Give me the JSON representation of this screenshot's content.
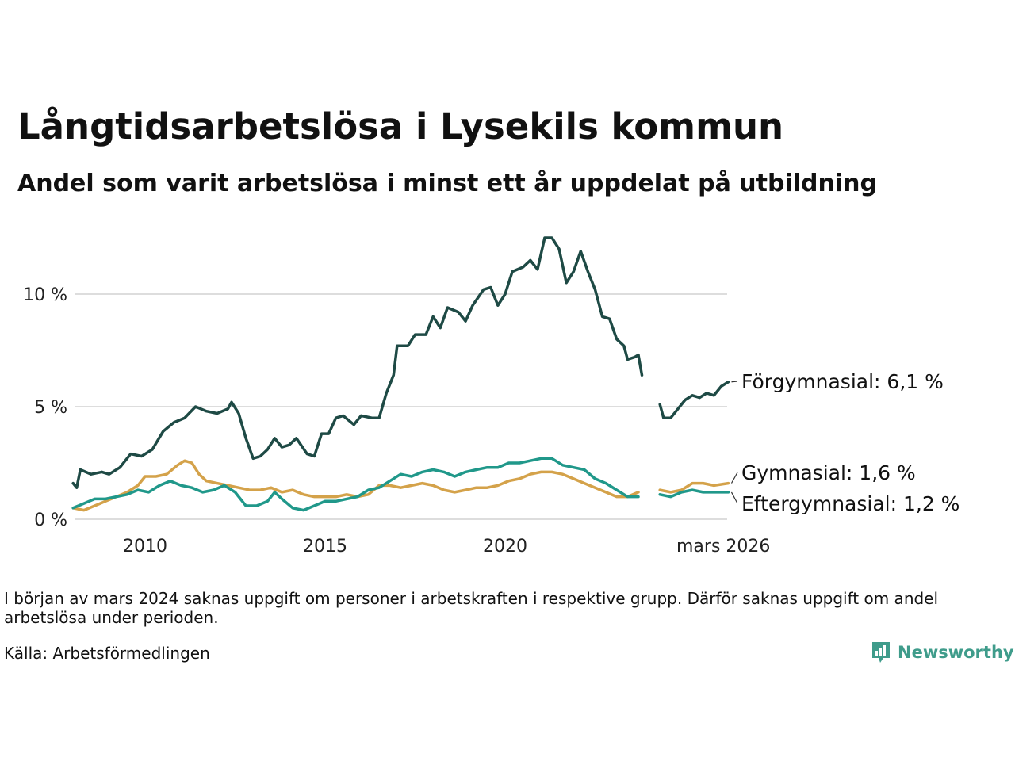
{
  "header": {
    "title": "Långtidsarbetslösa i Lysekils kommun",
    "subtitle": "Andel som varit arbetslösa i minst ett år uppdelat på utbildning"
  },
  "footer": {
    "note": "I början av mars 2024 saknas uppgift om personer i arbetskraften i respektive grupp. Därför saknas uppgift om andel arbetslösa under perioden.",
    "source": "Källa: Arbetsförmedlingen",
    "brand": "Newsworthy"
  },
  "chart_data": {
    "type": "line",
    "x_unit": "decimal year",
    "xlim": [
      2008.0,
      2026.2
    ],
    "ylim": [
      0,
      13
    ],
    "y_ticks": [
      0,
      5,
      10
    ],
    "y_tick_labels": [
      "0 %",
      "5 %",
      "10 %"
    ],
    "x_ticks": [
      2010,
      2015,
      2020,
      2026.2
    ],
    "x_tick_labels": [
      "2010",
      "2015",
      "2020",
      "mars 2026"
    ],
    "grid": "horizontal",
    "gap": [
      2024.0,
      2024.3
    ],
    "series": [
      {
        "name": "Förgymnasial",
        "end_label": "Förgymnasial: 6,1 %",
        "color": "#1e4a45",
        "points": [
          [
            2008.0,
            1.6
          ],
          [
            2008.1,
            1.4
          ],
          [
            2008.2,
            2.2
          ],
          [
            2008.5,
            2.0
          ],
          [
            2008.8,
            2.1
          ],
          [
            2009.0,
            2.0
          ],
          [
            2009.3,
            2.3
          ],
          [
            2009.6,
            2.9
          ],
          [
            2009.9,
            2.8
          ],
          [
            2010.2,
            3.1
          ],
          [
            2010.5,
            3.9
          ],
          [
            2010.8,
            4.3
          ],
          [
            2011.1,
            4.5
          ],
          [
            2011.4,
            5.0
          ],
          [
            2011.7,
            4.8
          ],
          [
            2012.0,
            4.7
          ],
          [
            2012.3,
            4.9
          ],
          [
            2012.4,
            5.2
          ],
          [
            2012.6,
            4.7
          ],
          [
            2012.8,
            3.6
          ],
          [
            2013.0,
            2.7
          ],
          [
            2013.2,
            2.8
          ],
          [
            2013.4,
            3.1
          ],
          [
            2013.6,
            3.6
          ],
          [
            2013.8,
            3.2
          ],
          [
            2014.0,
            3.3
          ],
          [
            2014.2,
            3.6
          ],
          [
            2014.5,
            2.9
          ],
          [
            2014.7,
            2.8
          ],
          [
            2014.9,
            3.8
          ],
          [
            2015.1,
            3.8
          ],
          [
            2015.3,
            4.5
          ],
          [
            2015.5,
            4.6
          ],
          [
            2015.8,
            4.2
          ],
          [
            2016.0,
            4.6
          ],
          [
            2016.3,
            4.5
          ],
          [
            2016.5,
            4.5
          ],
          [
            2016.7,
            5.6
          ],
          [
            2016.9,
            6.4
          ],
          [
            2017.0,
            7.7
          ],
          [
            2017.3,
            7.7
          ],
          [
            2017.5,
            8.2
          ],
          [
            2017.8,
            8.2
          ],
          [
            2018.0,
            9.0
          ],
          [
            2018.2,
            8.5
          ],
          [
            2018.4,
            9.4
          ],
          [
            2018.7,
            9.2
          ],
          [
            2018.9,
            8.8
          ],
          [
            2019.1,
            9.5
          ],
          [
            2019.4,
            10.2
          ],
          [
            2019.6,
            10.3
          ],
          [
            2019.8,
            9.5
          ],
          [
            2020.0,
            10.0
          ],
          [
            2020.2,
            11.0
          ],
          [
            2020.5,
            11.2
          ],
          [
            2020.7,
            11.5
          ],
          [
            2020.9,
            11.1
          ],
          [
            2021.1,
            12.5
          ],
          [
            2021.3,
            12.5
          ],
          [
            2021.5,
            12.0
          ],
          [
            2021.7,
            10.5
          ],
          [
            2021.9,
            11.0
          ],
          [
            2022.1,
            11.9
          ],
          [
            2022.3,
            11.0
          ],
          [
            2022.5,
            10.2
          ],
          [
            2022.7,
            9.0
          ],
          [
            2022.9,
            8.9
          ],
          [
            2023.1,
            8.0
          ],
          [
            2023.3,
            7.7
          ],
          [
            2023.4,
            7.1
          ],
          [
            2023.6,
            7.2
          ],
          [
            2023.7,
            7.3
          ],
          [
            2023.8,
            6.4
          ],
          [
            2024.3,
            5.1
          ],
          [
            2024.4,
            4.5
          ],
          [
            2024.6,
            4.5
          ],
          [
            2024.8,
            4.9
          ],
          [
            2025.0,
            5.3
          ],
          [
            2025.2,
            5.5
          ],
          [
            2025.4,
            5.4
          ],
          [
            2025.6,
            5.6
          ],
          [
            2025.8,
            5.5
          ],
          [
            2025.9,
            5.7
          ],
          [
            2026.0,
            5.9
          ],
          [
            2026.2,
            6.1
          ]
        ]
      },
      {
        "name": "Gymnasial",
        "end_label": "Gymnasial: 1,6 %",
        "color": "#d4a24a",
        "points": [
          [
            2008.0,
            0.5
          ],
          [
            2008.3,
            0.4
          ],
          [
            2008.6,
            0.6
          ],
          [
            2008.9,
            0.8
          ],
          [
            2009.2,
            1.0
          ],
          [
            2009.5,
            1.2
          ],
          [
            2009.8,
            1.5
          ],
          [
            2010.0,
            1.9
          ],
          [
            2010.3,
            1.9
          ],
          [
            2010.6,
            2.0
          ],
          [
            2010.9,
            2.4
          ],
          [
            2011.1,
            2.6
          ],
          [
            2011.3,
            2.5
          ],
          [
            2011.5,
            2.0
          ],
          [
            2011.7,
            1.7
          ],
          [
            2012.0,
            1.6
          ],
          [
            2012.3,
            1.5
          ],
          [
            2012.6,
            1.4
          ],
          [
            2012.9,
            1.3
          ],
          [
            2013.2,
            1.3
          ],
          [
            2013.5,
            1.4
          ],
          [
            2013.8,
            1.2
          ],
          [
            2014.1,
            1.3
          ],
          [
            2014.4,
            1.1
          ],
          [
            2014.7,
            1.0
          ],
          [
            2015.0,
            1.0
          ],
          [
            2015.3,
            1.0
          ],
          [
            2015.6,
            1.1
          ],
          [
            2015.9,
            1.0
          ],
          [
            2016.2,
            1.1
          ],
          [
            2016.5,
            1.5
          ],
          [
            2016.8,
            1.5
          ],
          [
            2017.1,
            1.4
          ],
          [
            2017.4,
            1.5
          ],
          [
            2017.7,
            1.6
          ],
          [
            2018.0,
            1.5
          ],
          [
            2018.3,
            1.3
          ],
          [
            2018.6,
            1.2
          ],
          [
            2018.9,
            1.3
          ],
          [
            2019.2,
            1.4
          ],
          [
            2019.5,
            1.4
          ],
          [
            2019.8,
            1.5
          ],
          [
            2020.1,
            1.7
          ],
          [
            2020.4,
            1.8
          ],
          [
            2020.7,
            2.0
          ],
          [
            2021.0,
            2.1
          ],
          [
            2021.3,
            2.1
          ],
          [
            2021.6,
            2.0
          ],
          [
            2021.9,
            1.8
          ],
          [
            2022.2,
            1.6
          ],
          [
            2022.5,
            1.4
          ],
          [
            2022.8,
            1.2
          ],
          [
            2023.1,
            1.0
          ],
          [
            2023.4,
            1.0
          ],
          [
            2023.7,
            1.2
          ],
          [
            2024.3,
            1.3
          ],
          [
            2024.6,
            1.2
          ],
          [
            2024.9,
            1.3
          ],
          [
            2025.2,
            1.6
          ],
          [
            2025.5,
            1.6
          ],
          [
            2025.8,
            1.5
          ],
          [
            2026.2,
            1.6
          ]
        ]
      },
      {
        "name": "Eftergymnasial",
        "end_label": "Eftergymnasial: 1,2 %",
        "color": "#20988a",
        "points": [
          [
            2008.0,
            0.5
          ],
          [
            2008.3,
            0.7
          ],
          [
            2008.6,
            0.9
          ],
          [
            2008.9,
            0.9
          ],
          [
            2009.2,
            1.0
          ],
          [
            2009.5,
            1.1
          ],
          [
            2009.8,
            1.3
          ],
          [
            2010.1,
            1.2
          ],
          [
            2010.4,
            1.5
          ],
          [
            2010.7,
            1.7
          ],
          [
            2011.0,
            1.5
          ],
          [
            2011.3,
            1.4
          ],
          [
            2011.6,
            1.2
          ],
          [
            2011.9,
            1.3
          ],
          [
            2012.2,
            1.5
          ],
          [
            2012.5,
            1.2
          ],
          [
            2012.8,
            0.6
          ],
          [
            2013.1,
            0.6
          ],
          [
            2013.4,
            0.8
          ],
          [
            2013.6,
            1.2
          ],
          [
            2013.8,
            0.9
          ],
          [
            2014.1,
            0.5
          ],
          [
            2014.4,
            0.4
          ],
          [
            2014.7,
            0.6
          ],
          [
            2015.0,
            0.8
          ],
          [
            2015.3,
            0.8
          ],
          [
            2015.6,
            0.9
          ],
          [
            2015.9,
            1.0
          ],
          [
            2016.2,
            1.3
          ],
          [
            2016.5,
            1.4
          ],
          [
            2016.8,
            1.7
          ],
          [
            2017.1,
            2.0
          ],
          [
            2017.4,
            1.9
          ],
          [
            2017.7,
            2.1
          ],
          [
            2018.0,
            2.2
          ],
          [
            2018.3,
            2.1
          ],
          [
            2018.6,
            1.9
          ],
          [
            2018.9,
            2.1
          ],
          [
            2019.2,
            2.2
          ],
          [
            2019.5,
            2.3
          ],
          [
            2019.8,
            2.3
          ],
          [
            2020.1,
            2.5
          ],
          [
            2020.4,
            2.5
          ],
          [
            2020.7,
            2.6
          ],
          [
            2021.0,
            2.7
          ],
          [
            2021.3,
            2.7
          ],
          [
            2021.6,
            2.4
          ],
          [
            2021.9,
            2.3
          ],
          [
            2022.2,
            2.2
          ],
          [
            2022.5,
            1.8
          ],
          [
            2022.8,
            1.6
          ],
          [
            2023.1,
            1.3
          ],
          [
            2023.4,
            1.0
          ],
          [
            2023.7,
            1.0
          ],
          [
            2024.3,
            1.1
          ],
          [
            2024.6,
            1.0
          ],
          [
            2024.9,
            1.2
          ],
          [
            2025.2,
            1.3
          ],
          [
            2025.5,
            1.2
          ],
          [
            2025.8,
            1.2
          ],
          [
            2026.2,
            1.2
          ]
        ]
      }
    ]
  }
}
